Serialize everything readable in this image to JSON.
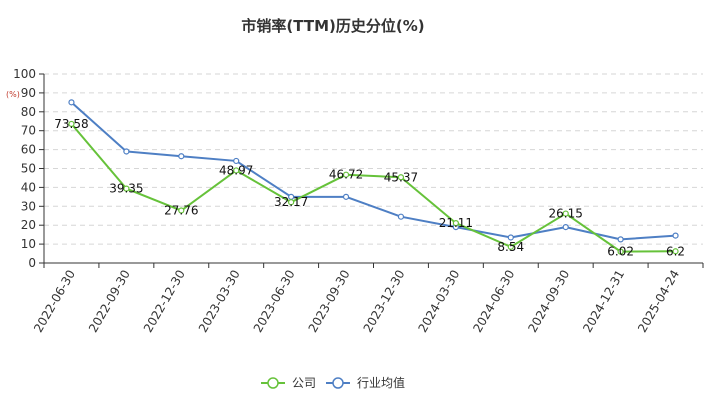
{
  "chart_data": {
    "type": "line",
    "title": "市销率(TTM)历史分位(%)",
    "ylabel": "(%)",
    "categories": [
      "2022-06-30",
      "2022-09-30",
      "2022-12-30",
      "2023-03-30",
      "2023-06-30",
      "2023-09-30",
      "2023-12-30",
      "2024-03-30",
      "2024-06-30",
      "2024-09-30",
      "2024-12-31",
      "2025-04-24"
    ],
    "ylim": [
      0,
      100
    ],
    "yticks": [
      0,
      10,
      20,
      30,
      40,
      50,
      60,
      70,
      80,
      90,
      100
    ],
    "grid": true,
    "legend_position": "bottom",
    "series": [
      {
        "name": "公司",
        "color": "#66c23a",
        "values": [
          73.58,
          39.35,
          27.76,
          48.97,
          32.17,
          46.72,
          45.37,
          21.11,
          8.54,
          26.15,
          6.02,
          6.2
        ],
        "labels": [
          "73.58",
          "39.35",
          "27.76",
          "48.97",
          "32.17",
          "46.72",
          "45.37",
          "21.11",
          "8.54",
          "26.15",
          "6.02",
          "6.2"
        ]
      },
      {
        "name": "行业均值",
        "color": "#4e7fc4",
        "values": [
          85,
          59,
          56.5,
          54,
          35,
          35,
          24.5,
          19,
          13.5,
          19,
          12.5,
          14.5
        ]
      }
    ]
  }
}
